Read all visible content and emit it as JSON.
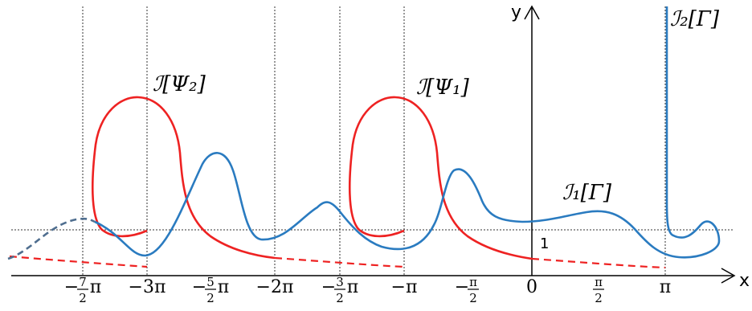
{
  "axes": {
    "x_label": "x",
    "y_label": "y",
    "one_label": "1",
    "ticks": [
      {
        "num": "7",
        "den": "2",
        "sign": "−",
        "suffix": "π"
      },
      {
        "text": "−3π"
      },
      {
        "num": "5",
        "den": "2",
        "sign": "−",
        "suffix": "π"
      },
      {
        "text": "−2π"
      },
      {
        "num": "3",
        "den": "2",
        "sign": "−",
        "suffix": "π"
      },
      {
        "text": "−π"
      },
      {
        "num": "π",
        "den": "2",
        "sign": "−",
        "suffix": ""
      },
      {
        "text": "0"
      },
      {
        "num": "π",
        "den": "2",
        "sign": "",
        "suffix": ""
      },
      {
        "text": "π"
      }
    ]
  },
  "labels": {
    "psi2": "ℐ[Ψ₂]",
    "psi1": "ℐ[Ψ₁]",
    "i1_gamma": "ℐ₁[Γ]",
    "i2_gamma": "ℐ₂[Γ]"
  },
  "colors": {
    "blue_curve": "#2a7bc0",
    "blue_dashed": "#4f6e8f",
    "red_curve": "#ee2222",
    "axis": "#000000",
    "guide": "#333333"
  }
}
